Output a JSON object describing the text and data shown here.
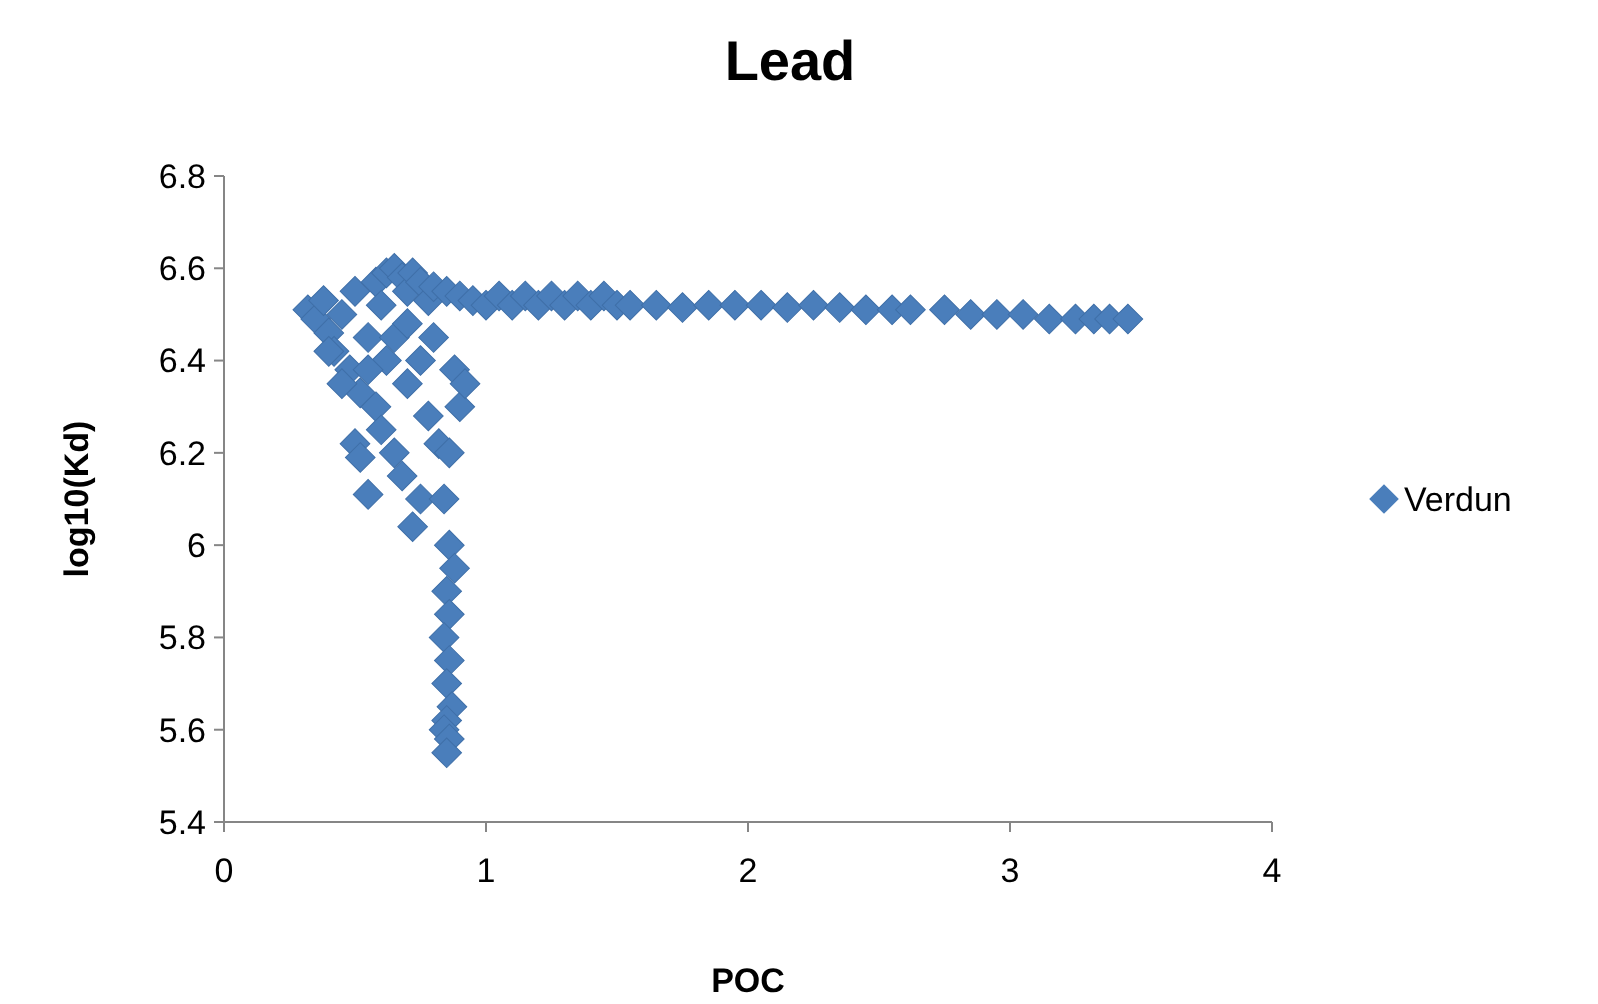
{
  "chart_data": {
    "type": "scatter",
    "title": "Lead",
    "xlabel": "POC",
    "ylabel": "log10(Kd)",
    "xlim": [
      0,
      4
    ],
    "xticks": [
      0,
      1,
      2,
      3,
      4
    ],
    "ylim": [
      5.4,
      6.8
    ],
    "yticks": [
      5.4,
      5.6,
      5.8,
      6,
      6.2,
      6.4,
      6.6,
      6.8
    ],
    "grid": false,
    "legend": "right",
    "marker": "diamond",
    "series": [
      {
        "name": "Verdun",
        "color": "#4a7ebb",
        "x": [
          0.32,
          0.35,
          0.38,
          0.4,
          0.42,
          0.45,
          0.48,
          0.5,
          0.52,
          0.55,
          0.58,
          0.6,
          0.62,
          0.65,
          0.68,
          0.7,
          0.72,
          0.75,
          0.78,
          0.8,
          0.85,
          0.9,
          0.95,
          0.5,
          0.52,
          0.55,
          0.58,
          0.6,
          0.62,
          0.65,
          0.68,
          0.7,
          0.72,
          0.75,
          0.78,
          0.8,
          0.82,
          0.88,
          0.9,
          0.92,
          0.65,
          0.7,
          0.75,
          0.55,
          0.45,
          0.4,
          0.86,
          0.84,
          0.86,
          0.88,
          0.85,
          0.86,
          0.84,
          0.86,
          0.85,
          0.87,
          0.85,
          0.84,
          0.86,
          0.85,
          1.0,
          1.05,
          1.1,
          1.15,
          1.2,
          1.25,
          1.3,
          1.35,
          1.4,
          1.45,
          1.5,
          1.55,
          1.65,
          1.75,
          1.85,
          1.95,
          2.05,
          2.15,
          2.25,
          2.35,
          2.45,
          2.55,
          2.62,
          2.75,
          2.85,
          2.95,
          3.05,
          3.15,
          3.25,
          3.32,
          3.38,
          3.45
        ],
        "values": [
          6.51,
          6.49,
          6.53,
          6.46,
          6.42,
          6.5,
          6.38,
          6.55,
          6.33,
          6.45,
          6.57,
          6.52,
          6.59,
          6.6,
          6.58,
          6.55,
          6.59,
          6.57,
          6.53,
          6.56,
          6.55,
          6.54,
          6.53,
          6.22,
          6.19,
          6.11,
          6.3,
          6.25,
          6.4,
          6.2,
          6.15,
          6.35,
          6.04,
          6.1,
          6.28,
          6.45,
          6.22,
          6.38,
          6.3,
          6.35,
          6.45,
          6.48,
          6.4,
          6.38,
          6.35,
          6.42,
          6.2,
          6.1,
          6.0,
          5.95,
          5.9,
          5.85,
          5.8,
          5.75,
          5.7,
          5.65,
          5.62,
          5.6,
          5.58,
          5.55,
          6.52,
          6.54,
          6.52,
          6.54,
          6.52,
          6.54,
          6.52,
          6.54,
          6.52,
          6.54,
          6.52,
          6.52,
          6.52,
          6.515,
          6.52,
          6.52,
          6.52,
          6.515,
          6.52,
          6.515,
          6.51,
          6.51,
          6.51,
          6.51,
          6.5,
          6.5,
          6.5,
          6.49,
          6.49,
          6.49,
          6.49,
          6.49
        ]
      }
    ]
  }
}
